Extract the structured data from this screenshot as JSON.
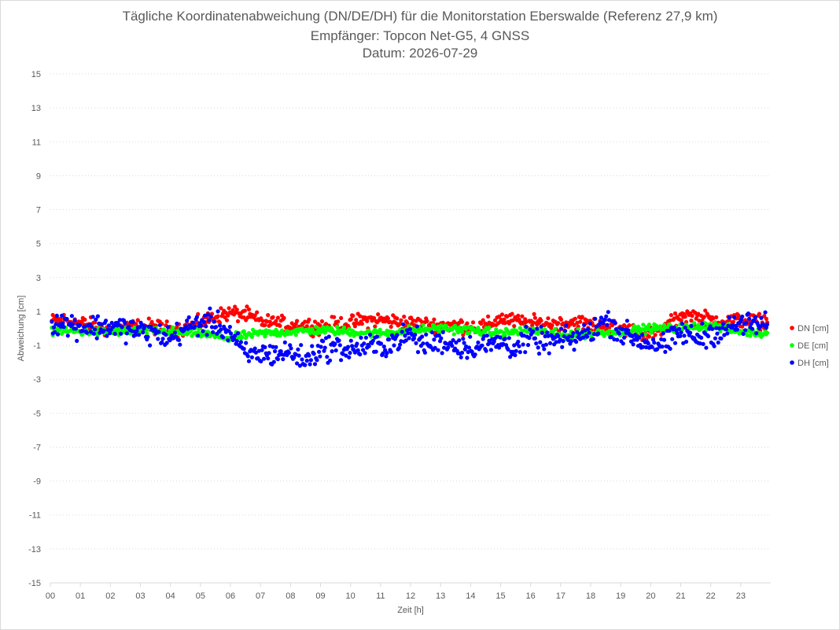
{
  "chart_data": {
    "type": "scatter",
    "title": "Tägliche Koordinatenabweichung (DN/DE/DH) für die Monitorstation Eberswalde (Referenz 27,9 km)",
    "subtitle": "Empfänger: Topcon Net-G5, 4 GNSS",
    "date_line": "Datum: 2026-07-29",
    "xlabel": "Zeit [h]",
    "ylabel": "Abweichung [cm]",
    "xlim": [
      0,
      24
    ],
    "ylim": [
      -15,
      15
    ],
    "x_tick_labels": [
      "00",
      "01",
      "02",
      "03",
      "04",
      "05",
      "06",
      "07",
      "08",
      "09",
      "10",
      "11",
      "12",
      "13",
      "14",
      "15",
      "16",
      "17",
      "18",
      "19",
      "20",
      "21",
      "22",
      "23"
    ],
    "y_tick_labels": [
      "15",
      "13",
      "11",
      "9",
      "7",
      "5",
      "3",
      "1",
      "-1",
      "-3",
      "-5",
      "-7",
      "-9",
      "-11",
      "-13",
      "-15"
    ],
    "grid": "horizontal dotted",
    "legend_position": "right",
    "sample_interval_min": 2,
    "series": [
      {
        "name": "DN [cm]",
        "color": "#ff0000",
        "keypoints": [
          [
            0,
            0.4
          ],
          [
            0.5,
            0.5
          ],
          [
            1,
            0.3
          ],
          [
            1.5,
            0.1
          ],
          [
            2,
            -0.1
          ],
          [
            2.5,
            0.0
          ],
          [
            3,
            0.1
          ],
          [
            3.5,
            0.1
          ],
          [
            4,
            -0.1
          ],
          [
            4.5,
            0.0
          ],
          [
            5,
            0.3
          ],
          [
            5.5,
            0.7
          ],
          [
            6,
            0.9
          ],
          [
            6.5,
            0.8
          ],
          [
            7,
            0.4
          ],
          [
            7.5,
            0.3
          ],
          [
            8,
            0.2
          ],
          [
            8.5,
            0.2
          ],
          [
            9,
            0.1
          ],
          [
            9.5,
            0.2
          ],
          [
            10,
            0.3
          ],
          [
            10.5,
            0.5
          ],
          [
            11,
            0.5
          ],
          [
            11.5,
            0.4
          ],
          [
            12,
            0.3
          ],
          [
            12.5,
            0.2
          ],
          [
            13,
            0.2
          ],
          [
            13.5,
            0.2
          ],
          [
            14,
            0.1
          ],
          [
            14.5,
            0.1
          ],
          [
            15,
            0.6
          ],
          [
            15.5,
            0.4
          ],
          [
            16,
            0.3
          ],
          [
            16.5,
            0.3
          ],
          [
            17,
            0.3
          ],
          [
            17.5,
            0.4
          ],
          [
            18,
            0.2
          ],
          [
            18.5,
            0.1
          ],
          [
            19,
            0.0
          ],
          [
            19.5,
            -0.2
          ],
          [
            20,
            -0.4
          ],
          [
            20.5,
            0.0
          ],
          [
            21,
            0.8
          ],
          [
            21.5,
            0.7
          ],
          [
            22,
            0.5
          ],
          [
            22.5,
            0.4
          ],
          [
            23,
            0.5
          ],
          [
            23.5,
            0.4
          ],
          [
            23.9,
            0.4
          ]
        ],
        "noise": 0.22
      },
      {
        "name": "DE [cm]",
        "color": "#00ff00",
        "keypoints": [
          [
            0,
            -0.1
          ],
          [
            1,
            -0.2
          ],
          [
            2,
            -0.2
          ],
          [
            3,
            -0.1
          ],
          [
            4,
            -0.2
          ],
          [
            5,
            -0.3
          ],
          [
            6,
            -0.6
          ],
          [
            6.5,
            -0.4
          ],
          [
            7,
            -0.3
          ],
          [
            8,
            -0.2
          ],
          [
            9,
            -0.1
          ],
          [
            10,
            -0.2
          ],
          [
            11,
            -0.3
          ],
          [
            12,
            -0.1
          ],
          [
            13,
            0.0
          ],
          [
            14,
            -0.1
          ],
          [
            15,
            -0.3
          ],
          [
            16,
            -0.1
          ],
          [
            17,
            -0.4
          ],
          [
            18,
            -0.3
          ],
          [
            19,
            -0.2
          ],
          [
            20,
            0.0
          ],
          [
            21,
            0.0
          ],
          [
            22,
            0.2
          ],
          [
            23,
            -0.2
          ],
          [
            23.9,
            -0.3
          ]
        ],
        "noise": 0.12
      },
      {
        "name": "DH [cm]",
        "color": "#0000ff",
        "keypoints": [
          [
            0,
            0.4
          ],
          [
            0.5,
            0.3
          ],
          [
            1,
            0.1
          ],
          [
            1.5,
            0.1
          ],
          [
            2,
            0.1
          ],
          [
            2.5,
            0.0
          ],
          [
            3,
            -0.2
          ],
          [
            3.5,
            -0.3
          ],
          [
            4,
            -0.6
          ],
          [
            4.5,
            0.0
          ],
          [
            5,
            0.3
          ],
          [
            5.5,
            0.3
          ],
          [
            6,
            -0.3
          ],
          [
            6.5,
            -1.6
          ],
          [
            7,
            -1.5
          ],
          [
            7.5,
            -1.5
          ],
          [
            8,
            -1.4
          ],
          [
            8.5,
            -1.9
          ],
          [
            9,
            -1.2
          ],
          [
            9.5,
            -1.1
          ],
          [
            10,
            -1.3
          ],
          [
            10.5,
            -1.0
          ],
          [
            11,
            -1.1
          ],
          [
            11.5,
            -0.7
          ],
          [
            12,
            -0.4
          ],
          [
            12.5,
            -1.0
          ],
          [
            13,
            -0.7
          ],
          [
            13.5,
            -1.0
          ],
          [
            14,
            -1.1
          ],
          [
            14.5,
            -1.0
          ],
          [
            15,
            -0.8
          ],
          [
            15.5,
            -1.1
          ],
          [
            16,
            -0.6
          ],
          [
            16.5,
            -0.8
          ],
          [
            17,
            -0.7
          ],
          [
            17.5,
            -0.6
          ],
          [
            18,
            -0.2
          ],
          [
            18.5,
            0.5
          ],
          [
            19,
            -0.2
          ],
          [
            19.5,
            -0.6
          ],
          [
            20,
            -0.9
          ],
          [
            20.5,
            -1.0
          ],
          [
            21,
            -0.2
          ],
          [
            21.5,
            -0.6
          ],
          [
            22,
            -0.3
          ],
          [
            22.5,
            -0.1
          ],
          [
            23,
            0.3
          ],
          [
            23.5,
            0.2
          ],
          [
            23.9,
            0.2
          ]
        ],
        "noise": 0.35
      }
    ]
  }
}
